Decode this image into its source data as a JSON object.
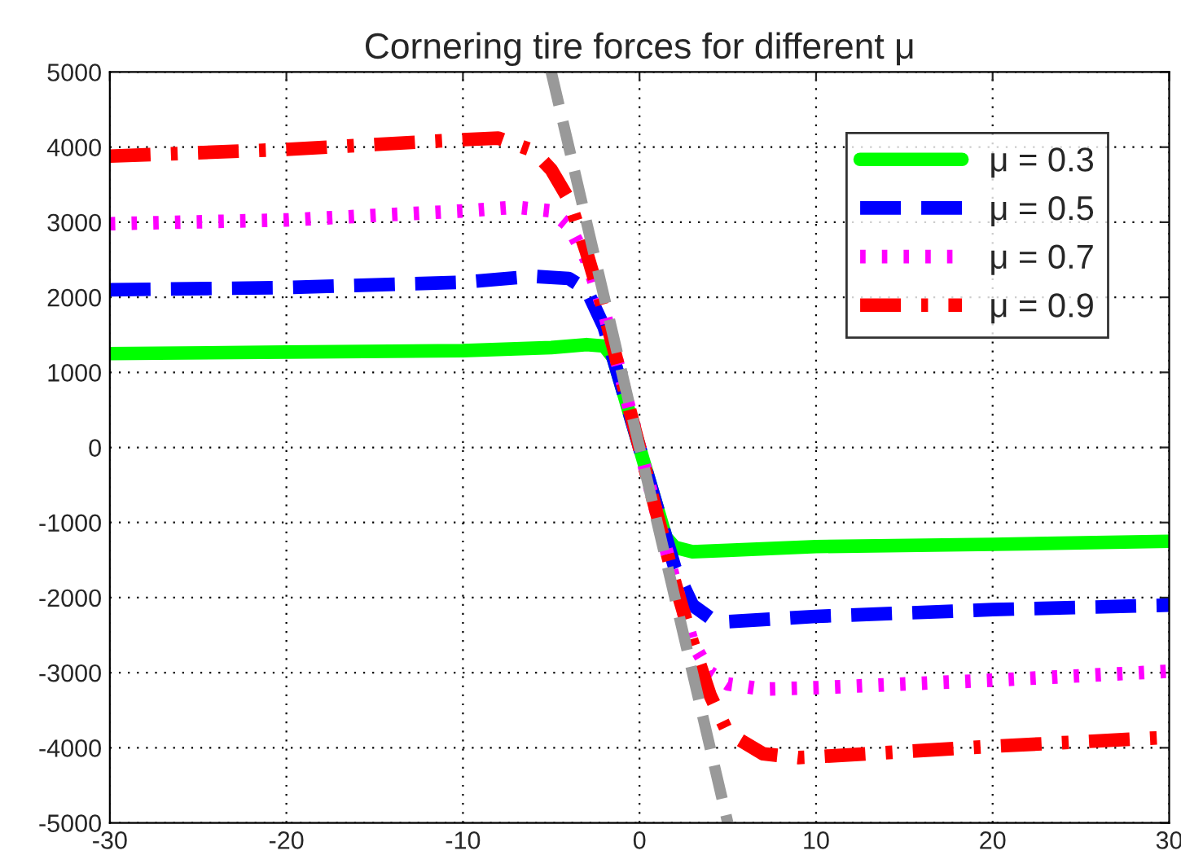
{
  "chart_data": {
    "type": "line",
    "title": "Cornering tire forces for different μ",
    "xlim": [
      -30,
      30
    ],
    "xticks": [
      -30,
      -20,
      -10,
      0,
      10,
      20,
      30
    ],
    "ylim": [
      -5000,
      5000
    ],
    "yticks": [
      -5000,
      -4000,
      -3000,
      -2000,
      -1000,
      0,
      1000,
      2000,
      3000,
      4000,
      5000
    ],
    "grid": true,
    "legend": "top right",
    "series": [
      {
        "name": "μ = 0.3",
        "color": "#00ff00",
        "line_style": "solid",
        "x": [
          -30,
          -20,
          -10,
          -5,
          -3,
          -2,
          -1.5,
          -1,
          0,
          1,
          1.5,
          2,
          3,
          5,
          10,
          20,
          30
        ],
        "values": [
          1250,
          1270,
          1290,
          1330,
          1370,
          1350,
          1200,
          800,
          0,
          -800,
          -1200,
          -1330,
          -1390,
          -1370,
          -1320,
          -1290,
          -1250
        ]
      },
      {
        "name": "μ = 0.5",
        "color": "#0000ff",
        "line_style": "dashed",
        "x": [
          -30,
          -20,
          -10,
          -6,
          -4,
          -3,
          -2,
          -1,
          0,
          1,
          2,
          3,
          4,
          5,
          10,
          20,
          30
        ],
        "values": [
          2100,
          2130,
          2200,
          2280,
          2250,
          2100,
          1600,
          800,
          0,
          -800,
          -1600,
          -2100,
          -2270,
          -2320,
          -2250,
          -2160,
          -2100
        ]
      },
      {
        "name": "μ = 0.7",
        "color": "#ff00ff",
        "line_style": "dotted",
        "x": [
          -30,
          -20,
          -10,
          -7,
          -5,
          -4,
          -3,
          -2,
          -1,
          0,
          1,
          2,
          3,
          4,
          5,
          7,
          10,
          20,
          30
        ],
        "values": [
          2980,
          3030,
          3150,
          3200,
          3150,
          2950,
          2500,
          1800,
          900,
          0,
          -900,
          -1800,
          -2600,
          -3000,
          -3150,
          -3220,
          -3200,
          -3100,
          -2980
        ]
      },
      {
        "name": "μ = 0.9",
        "color": "#ff0000",
        "line_style": "dashdot",
        "x": [
          -30,
          -20,
          -10,
          -8,
          -6,
          -5,
          -4,
          -3,
          -2,
          -1,
          0,
          1,
          2,
          3,
          4,
          5,
          7,
          9,
          10,
          20,
          30
        ],
        "values": [
          3880,
          3970,
          4100,
          4120,
          3950,
          3700,
          3300,
          2600,
          1800,
          900,
          0,
          -900,
          -1800,
          -2600,
          -3300,
          -3800,
          -4080,
          -4130,
          -4120,
          -3980,
          -3860
        ]
      },
      {
        "color": "#999999",
        "line_style": "dashed",
        "x": [
          -5,
          5
        ],
        "values": [
          5000,
          -5000
        ]
      }
    ]
  }
}
